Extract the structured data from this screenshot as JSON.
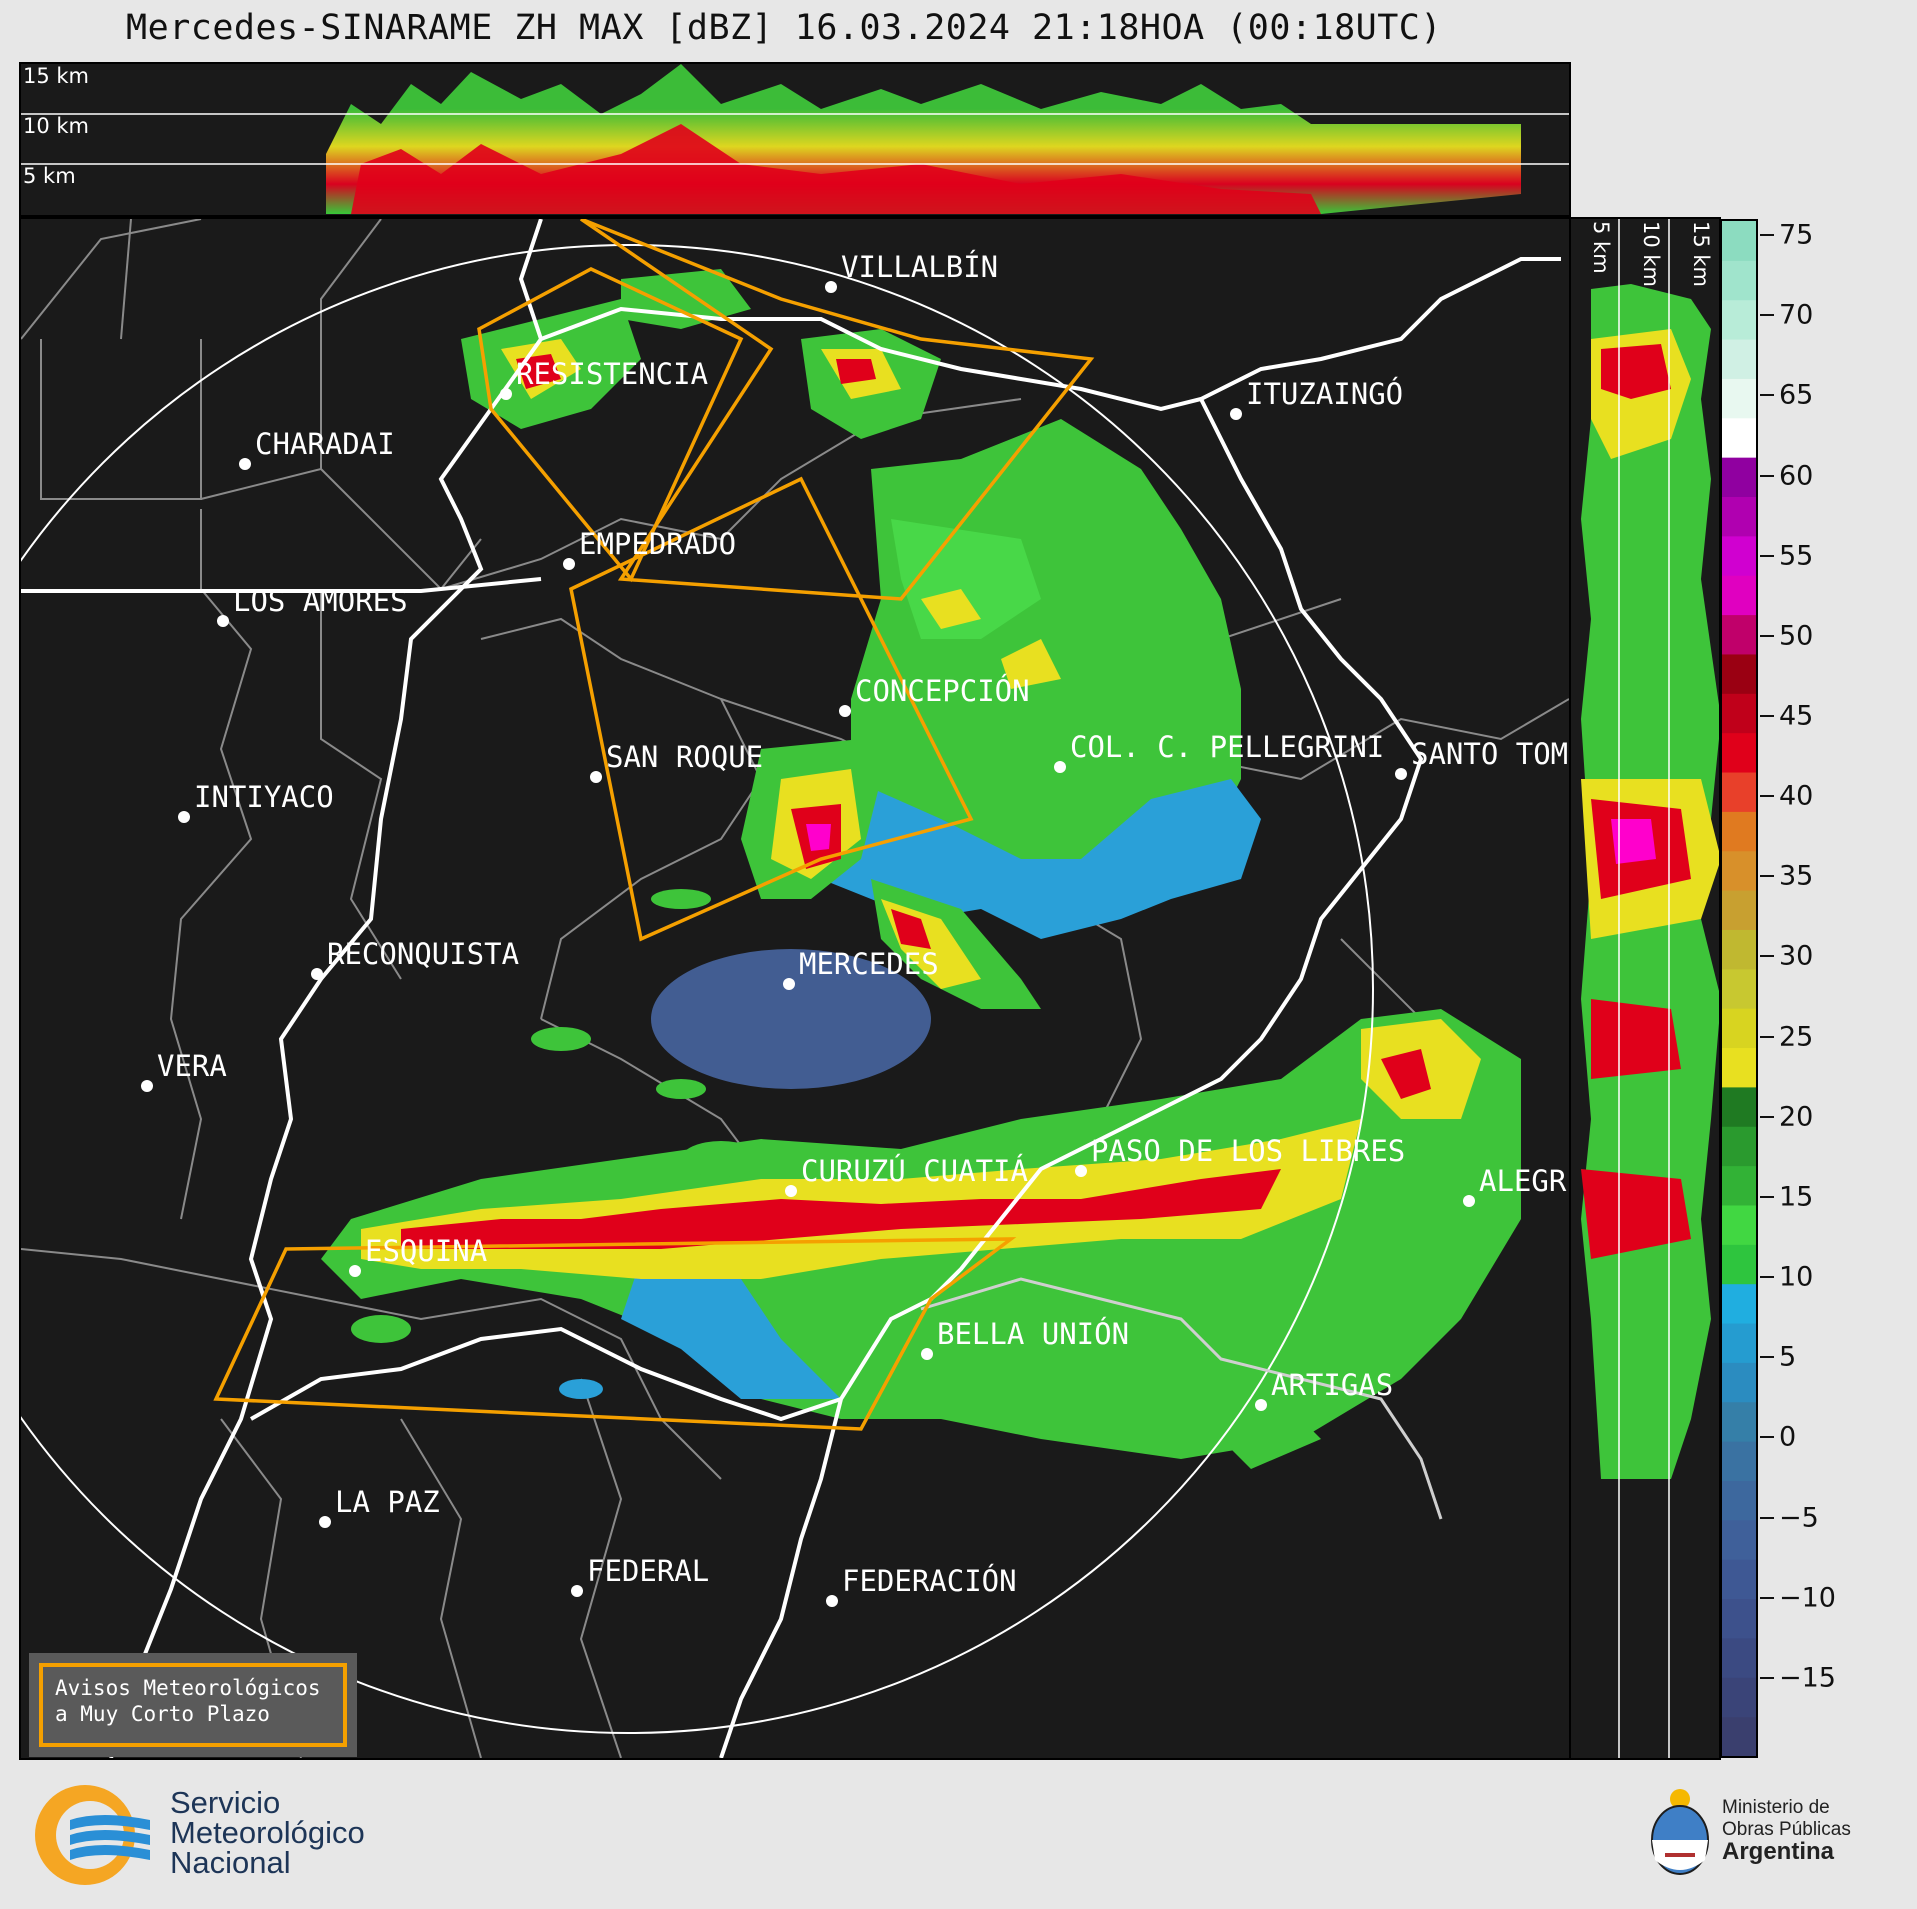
{
  "title": "Mercedes-SINARAME ZH MAX [dBZ] 16.03.2024 21:18HOA (00:18UTC)",
  "top_panel": {
    "height_labels": [
      "15 km",
      "10 km",
      "5 km"
    ]
  },
  "side_panel": {
    "height_labels": [
      "5 km",
      "10 km",
      "15 km"
    ]
  },
  "colorbar": {
    "unit": "dBZ",
    "ticks": [
      "75",
      "70",
      "65",
      "60",
      "55",
      "50",
      "45",
      "40",
      "35",
      "30",
      "25",
      "20",
      "15",
      "10",
      "5",
      "0",
      "−5",
      "−10",
      "−15"
    ],
    "range": [
      -20,
      76
    ]
  },
  "cities": [
    {
      "name": "VILLALBÍN"
    },
    {
      "name": "RESISTENCIA"
    },
    {
      "name": "CHARADAI"
    },
    {
      "name": "ITUZAINGÓ"
    },
    {
      "name": "EMPEDRADO"
    },
    {
      "name": "LOS AMORES"
    },
    {
      "name": "CONCEPCIÓN"
    },
    {
      "name": "SAN ROQUE"
    },
    {
      "name": "COL. C. PELLEGRINI"
    },
    {
      "name": "SANTO TOM"
    },
    {
      "name": "INTIYACO"
    },
    {
      "name": "RECONQUISTA"
    },
    {
      "name": "MERCEDES"
    },
    {
      "name": "VERA"
    },
    {
      "name": "CURUZÚ CUATIÁ"
    },
    {
      "name": "PASO DE LOS LIBRES"
    },
    {
      "name": "ALEGR"
    },
    {
      "name": "ESQUINA"
    },
    {
      "name": "BELLA UNIÓN"
    },
    {
      "name": "ARTIGAS"
    },
    {
      "name": "LA PAZ"
    },
    {
      "name": "FEDERAL"
    },
    {
      "name": "FEDERACIÓN"
    }
  ],
  "alert_box": {
    "line1": "Avisos Meteorológicos",
    "line2": "a Muy Corto Plazo"
  },
  "smn_logo": {
    "line1": "Servicio",
    "line2": "Meteorológico",
    "line3": "Nacional"
  },
  "ministry_logo": {
    "line1": "Ministerio de",
    "line2": "Obras Públicas",
    "line3": "Argentina"
  },
  "colors": {
    "warning_polygon": "#f5a000",
    "range_ring": "#ffffff",
    "background": "#1a1a1a"
  }
}
